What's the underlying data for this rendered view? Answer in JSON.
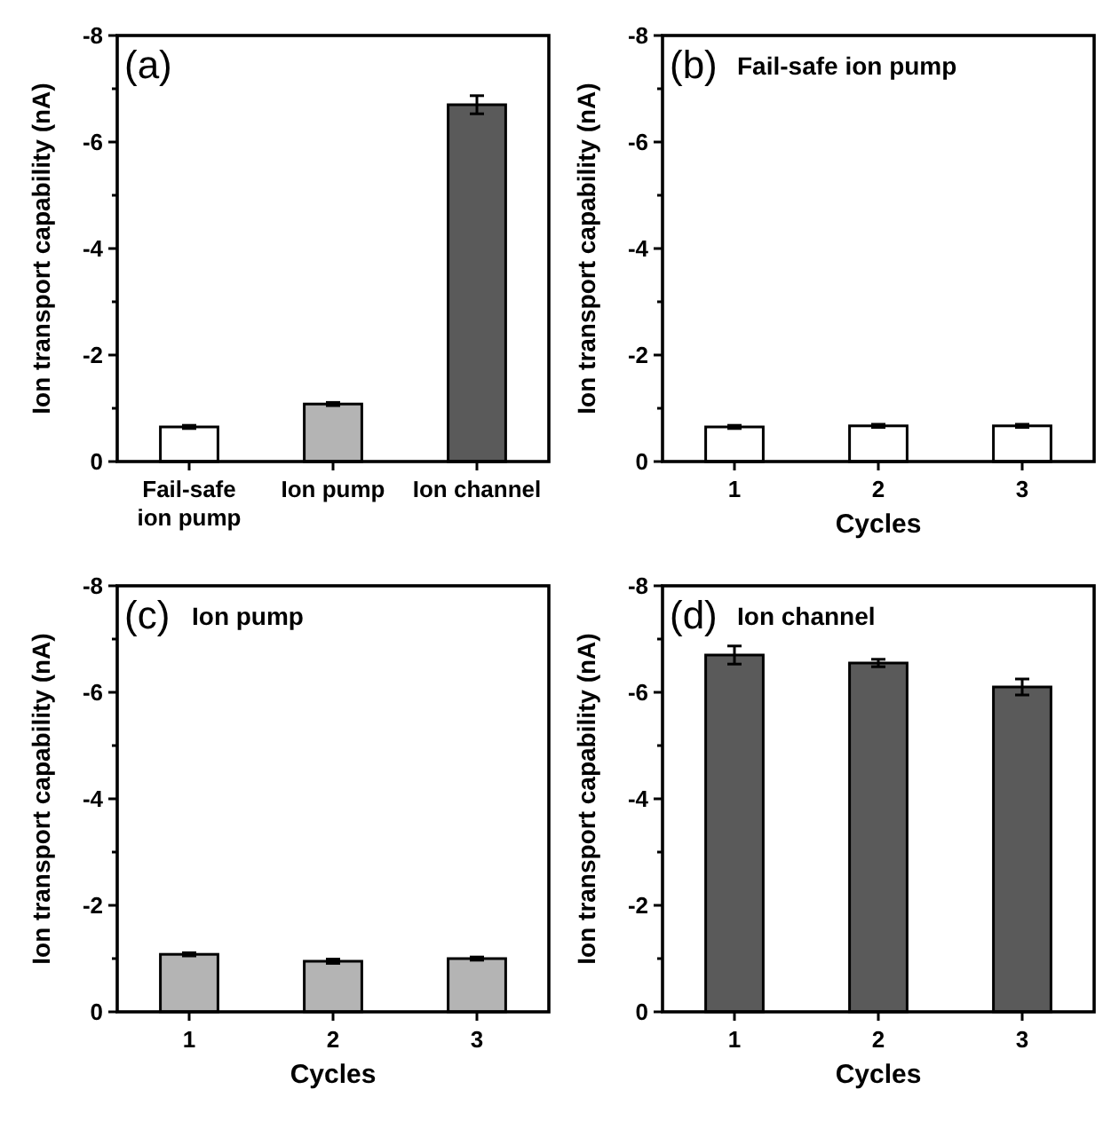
{
  "chart_data": [
    {
      "type": "bar",
      "title": "(a)",
      "ylabel": "Ion transport capability (nA)",
      "categories": [
        "Fail-safe ion pump",
        "Ion pump",
        "Ion channel"
      ],
      "values": [
        -0.65,
        -1.08,
        -6.7
      ],
      "errors": [
        0.03,
        0.03,
        0.17
      ],
      "colors": [
        "#ffffff",
        "#b4b4b4",
        "#5a5a5a"
      ],
      "ylim": [
        0,
        -8
      ],
      "yticks": [
        0,
        {
          "value": -1,
          "label": null
        },
        -2,
        {
          "value": -3,
          "label": null
        },
        -4,
        {
          "value": -5,
          "label": null
        },
        -6,
        {
          "value": -7,
          "label": null
        },
        -8
      ]
    },
    {
      "type": "bar",
      "title": "(b)",
      "subtitle": "Fail-safe ion pump",
      "xlabel": "Cycles",
      "ylabel": "Ion transport capability (nA)",
      "categories": [
        "1",
        "2",
        "3"
      ],
      "values": [
        -0.65,
        -0.67,
        -0.67
      ],
      "errors": [
        0.03,
        0.03,
        0.03
      ],
      "colors": [
        "#ffffff",
        "#ffffff",
        "#ffffff"
      ],
      "ylim": [
        0,
        -8
      ],
      "yticks": [
        0,
        {
          "value": -1,
          "label": null
        },
        -2,
        {
          "value": -3,
          "label": null
        },
        -4,
        {
          "value": -5,
          "label": null
        },
        -6,
        {
          "value": -7,
          "label": null
        },
        -8
      ]
    },
    {
      "type": "bar",
      "title": "(c)",
      "subtitle": "Ion pump",
      "xlabel": "Cycles",
      "ylabel": "Ion transport capability (nA)",
      "categories": [
        "1",
        "2",
        "3"
      ],
      "values": [
        -1.08,
        -0.95,
        -1.0
      ],
      "errors": [
        0.03,
        0.04,
        0.03
      ],
      "colors": [
        "#b4b4b4",
        "#b4b4b4",
        "#b4b4b4"
      ],
      "ylim": [
        0,
        -8
      ],
      "yticks": [
        0,
        {
          "value": -1,
          "label": null
        },
        -2,
        {
          "value": -3,
          "label": null
        },
        -4,
        {
          "value": -5,
          "label": null
        },
        -6,
        {
          "value": -7,
          "label": null
        },
        -8
      ]
    },
    {
      "type": "bar",
      "title": "(d)",
      "subtitle": "Ion channel",
      "xlabel": "Cycles",
      "ylabel": "Ion transport capability (nA)",
      "categories": [
        "1",
        "2",
        "3"
      ],
      "values": [
        -6.7,
        -6.55,
        -6.1
      ],
      "errors": [
        0.17,
        0.07,
        0.15
      ],
      "colors": [
        "#5a5a5a",
        "#5a5a5a",
        "#5a5a5a"
      ],
      "ylim": [
        0,
        -8
      ],
      "yticks": [
        0,
        {
          "value": -1,
          "label": null
        },
        -2,
        {
          "value": -3,
          "label": null
        },
        -4,
        {
          "value": -5,
          "label": null
        },
        -6,
        {
          "value": -7,
          "label": null
        },
        -8
      ]
    }
  ]
}
